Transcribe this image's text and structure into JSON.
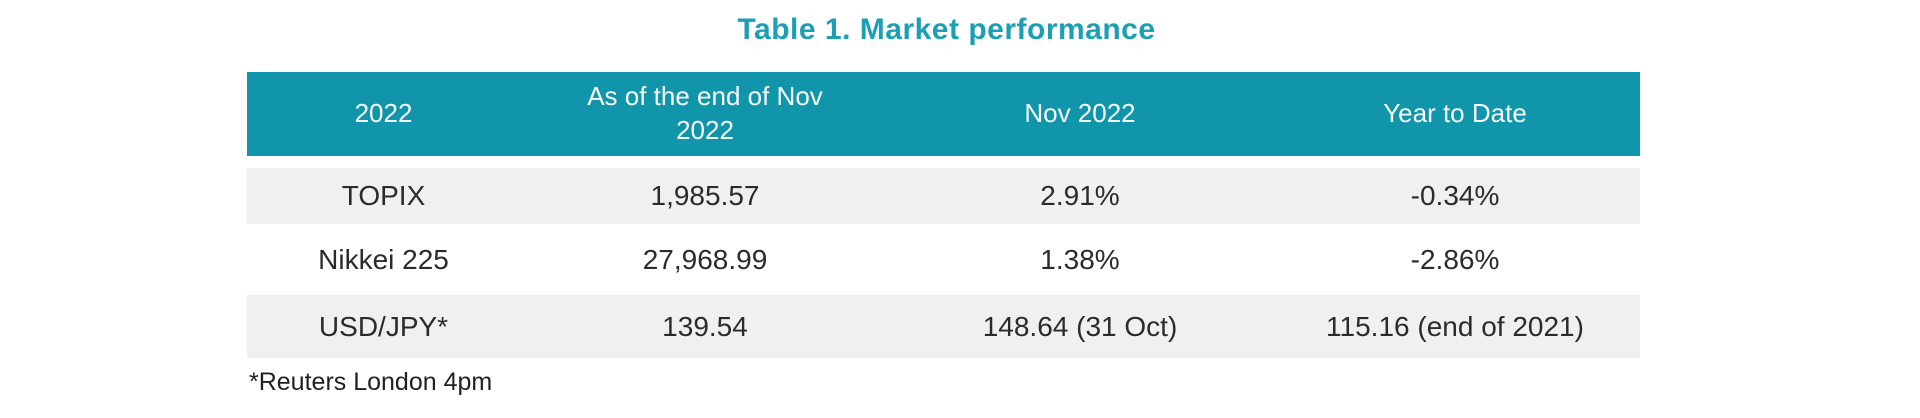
{
  "title": "Table 1. Market performance",
  "footnote": "*Reuters London 4pm",
  "colors": {
    "header_background": "#1095aa",
    "title_text": "#1b9fb4",
    "row_stripe": "#f0f0f0",
    "header_text": "#ffffff",
    "body_text": "#2b2b2b"
  },
  "table": {
    "headers": [
      "2022",
      "As of the end of Nov\n2022",
      "Nov 2022",
      "Year to Date"
    ],
    "rows": [
      [
        "TOPIX",
        "1,985.57",
        "2.91%",
        "-0.34%"
      ],
      [
        "Nikkei 225",
        "27,968.99",
        "1.38%",
        "-2.86%"
      ],
      [
        "USD/JPY*",
        "139.54",
        "148.64 (31 Oct)",
        "115.16 (end of 2021)"
      ]
    ]
  },
  "chart_data": {
    "type": "table",
    "title": "Table 1. Market performance",
    "columns": [
      "2022",
      "As of the end of Nov 2022",
      "Nov 2022",
      "Year to Date"
    ],
    "rows": [
      [
        "TOPIX",
        "1,985.57",
        "2.91%",
        "-0.34%"
      ],
      [
        "Nikkei 225",
        "27,968.99",
        "1.38%",
        "-2.86%"
      ],
      [
        "USD/JPY*",
        "139.54",
        "148.64 (31 Oct)",
        "115.16 (end of 2021)"
      ]
    ],
    "footnote": "*Reuters London 4pm",
    "layout": {
      "header_style": "teal band",
      "row_striping": "gray-white-gray",
      "grid": false
    }
  }
}
